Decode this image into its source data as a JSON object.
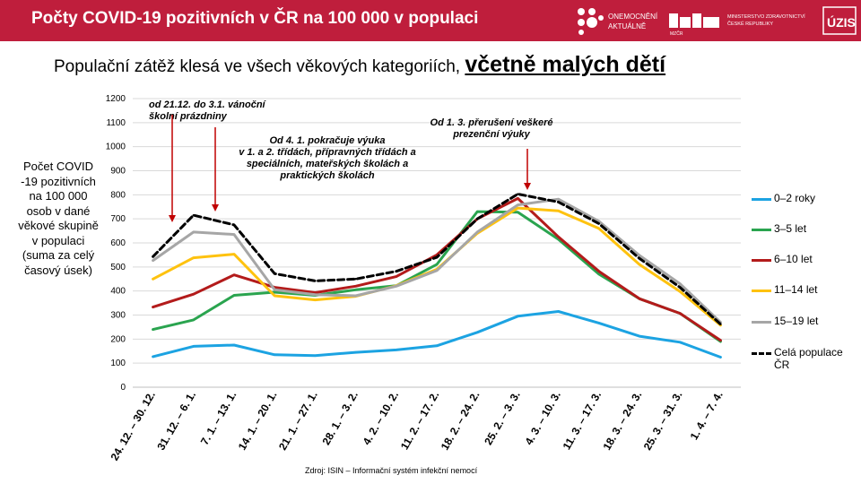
{
  "header": {
    "title": "Počty COVID-19 pozitivních v ČR na 100 000 v populaci",
    "logo_line1": "ONEMOCNĚNÍ",
    "logo_line2": "AKTUÁLNĚ",
    "ministry_line1": "MINISTERSTVO ZDRAVOTNICTVÍ",
    "ministry_line2": "ČESKÉ REPUBLIKY",
    "mzcr_logo": "MZČR",
    "uzis_logo": "ÚZIS"
  },
  "subtitle": {
    "normal": "Populační zátěž klesá ve všech věkových kategoriích,",
    "emphasis": "včetně malých dětí"
  },
  "side_label": "Počet COVID -19 pozitivních na 100 000 osob v dané věkové skupině v populaci (suma za celý časový úsek)",
  "source": "Zdroj: ISIN – Informační systém infekční nemocí",
  "colors": {
    "header_bg": "#bf1e3c"
  },
  "chart_data": {
    "type": "line",
    "title": "Počty COVID-19 pozitivních v ČR na 100 000 v populaci",
    "ylabel": "Počet COVID -19 pozitivních na 100 000 osob v dané věkové skupině v populaci (suma za celý časový úsek)",
    "xlabel": "",
    "ylim": [
      0,
      1200
    ],
    "yticks": [
      0,
      100,
      200,
      300,
      400,
      500,
      600,
      700,
      800,
      900,
      1000,
      1100,
      1200
    ],
    "grid": true,
    "legend_position": "right",
    "categories": [
      "24. 12. – 30. 12.",
      "31. 12. – 6. 1.",
      "7. 1. – 13. 1.",
      "14. 1. – 20. 1.",
      "21. 1. – 27. 1.",
      "28. 1. – 3. 2.",
      "4. 2. – 10. 2.",
      "11. 2. – 17. 2.",
      "18. 2. – 24. 2.",
      "25. 2. – 3. 3.",
      "4. 3. – 10. 3.",
      "11. 3. – 17. 3.",
      "18. 3. – 24. 3.",
      "25. 3. – 31. 3.",
      "1. 4. – 7. 4."
    ],
    "series": [
      {
        "name": "0–2 roky",
        "color": "#1ca3e2",
        "dashed": false,
        "values": [
          127,
          170,
          175,
          135,
          131,
          145,
          155,
          172,
          228,
          295,
          315,
          267,
          212,
          187,
          125
        ]
      },
      {
        "name": "3–5 let",
        "color": "#2aa44f",
        "dashed": false,
        "values": [
          240,
          280,
          382,
          395,
          382,
          405,
          422,
          510,
          730,
          728,
          615,
          470,
          368,
          307,
          190
        ]
      },
      {
        "name": "6–10 let",
        "color": "#b31b1b",
        "dashed": false,
        "values": [
          333,
          387,
          467,
          415,
          393,
          420,
          460,
          550,
          700,
          785,
          625,
          482,
          368,
          307,
          195
        ]
      },
      {
        "name": "11–14 let",
        "color": "#fec20f",
        "dashed": false,
        "values": [
          450,
          538,
          553,
          380,
          363,
          378,
          422,
          490,
          640,
          745,
          733,
          660,
          510,
          398,
          258
        ]
      },
      {
        "name": "15–19 let",
        "color": "#a6a6a6",
        "dashed": false,
        "values": [
          527,
          645,
          635,
          405,
          385,
          380,
          420,
          485,
          645,
          758,
          782,
          690,
          548,
          430,
          270
        ]
      },
      {
        "name": "Celá populace ČR",
        "color": "#000000",
        "dashed": true,
        "values": [
          543,
          715,
          675,
          472,
          442,
          450,
          482,
          540,
          700,
          803,
          770,
          680,
          535,
          415,
          262
        ]
      }
    ],
    "annotations": [
      {
        "text_lines": [
          "od 21.12. do 3.1. vánoční",
          "školní prázdniny"
        ]
      },
      {
        "text_lines": [
          "Od 1. 3. přerušení veškeré",
          "prezenční výuky"
        ]
      },
      {
        "text_lines": [
          "Od 4. 1. pokračuje výuka",
          "v 1. a 2. třídách, přípravných třídách a",
          "speciálních, mateřských školách a",
          "praktických školách"
        ]
      }
    ]
  }
}
